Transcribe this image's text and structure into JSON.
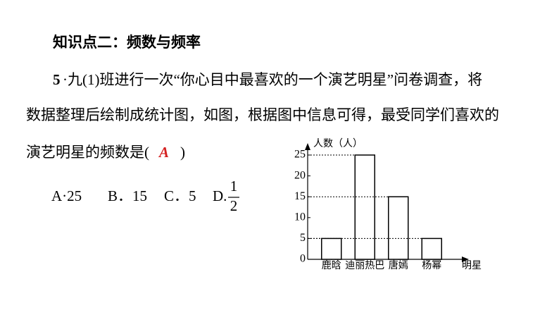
{
  "heading": "知识点二：频数与频率",
  "question": {
    "number": "5",
    "lines": [
      "·九(1)班进行一次“你心目中最喜欢的一个演艺明星”问卷调查，将",
      "数据整理后绘制成统计图，如图，根据图中信息可得，最受同学们喜欢的",
      "演艺明星的频数是("
    ],
    "answer": "A",
    "close": ")"
  },
  "options": {
    "items": [
      "A·25",
      "B．15",
      "C．5",
      "D."
    ],
    "fraction": {
      "numerator": 1,
      "denominator": 2
    }
  },
  "chart_data": {
    "type": "bar",
    "y_label": "人数（人）",
    "x_label": "明星",
    "categories": [
      "鹿晗",
      "迪丽热巴",
      "唐嫣",
      "杨幂"
    ],
    "values": [
      5,
      25,
      15,
      5
    ],
    "ylim": [
      0,
      25
    ],
    "yticks": [
      0,
      5,
      10,
      15,
      20,
      25
    ],
    "color": "#ffffff"
  }
}
